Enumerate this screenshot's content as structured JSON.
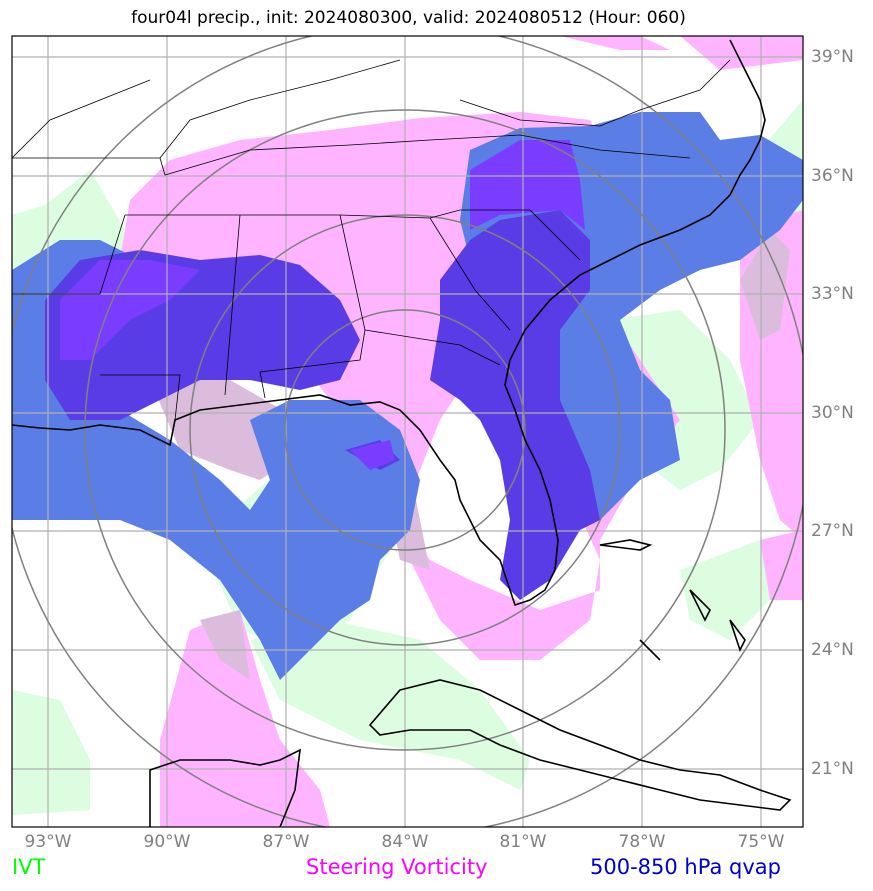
{
  "title": "four04l precip., init: 2024080300, valid: 2024080512 (Hour: 060)",
  "lat_labels": [
    "39°N",
    "36°N",
    "33°N",
    "30°N",
    "27°N",
    "24°N",
    "21°N"
  ],
  "lon_labels": [
    "93°W",
    "90°W",
    "87°W",
    "84°W",
    "81°W",
    "78°W",
    "75°W"
  ],
  "legend": {
    "ivt": "IVT",
    "vorticity": "Steering Vorticity",
    "qvap": "500-850 hPa qvap"
  },
  "colors": {
    "ivt": "#00ff00",
    "vorticity": "#ff00ff",
    "qvap": "#0000cd",
    "ivt_fill": "#dcfde0",
    "vort_fill": "#ffb4ff",
    "qvap_fill": "#5a7ee6",
    "qvap_dark_fill": "#5a3ce6",
    "qvap_purple_fill": "#7a3cff",
    "overlap_fill": "#dcbcdc",
    "grid": "#b0b0b0",
    "rings": "#808080"
  }
}
